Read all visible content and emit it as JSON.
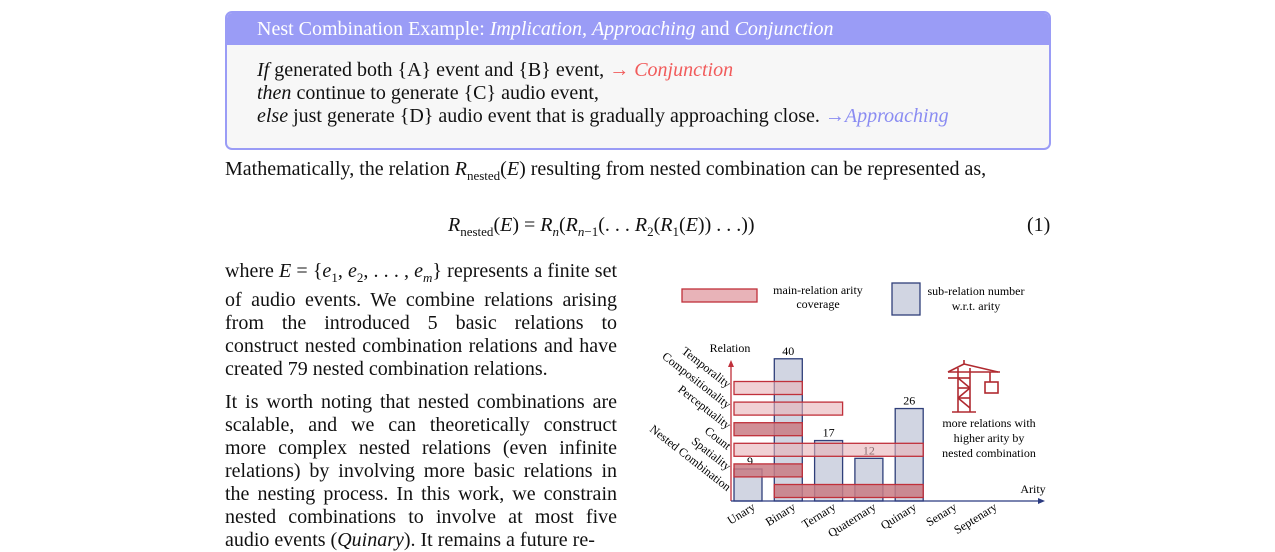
{
  "box": {
    "title_prefix": "Nest Combination Example: ",
    "title_implication": "Implication",
    "title_sep": ", ",
    "title_approaching": "Approaching",
    "title_and": " and ",
    "title_conjunction": "Conjunction",
    "line1_if": "If",
    "line1_text": " generated both {A} event and {B} event, ",
    "line1_tag": "→ Conjunction",
    "line2_then": "then",
    "line2_text": " continue to generate {C} audio event,",
    "line3_else": "else",
    "line3_text": " just generate {D} audio event that is gradually approaching close. ",
    "line3_tag": "→Approaching"
  },
  "intro": {
    "before": "Mathematically, the relation ",
    "after": " resulting from nested combination can be represented as,"
  },
  "equation": {
    "number": "(1)"
  },
  "left_column": {
    "p1_where": "where ",
    "p1_rest": " represents a finite set of audio events. We combine relations arising from the introduced 5 basic relations to construct nested combination relations and have created 79 nested combination relations.",
    "p2_a": "It is worth noting that nested combinations are scalable, and we can theoretically construct more complex nested relations (even infinite relations) by involving more basic relations in the nesting process. In this work, we constrain nested combinations to involve at most five audio events (",
    "p2_quinary": "Quinary",
    "p2_b": "). It remains a future re-"
  },
  "figure": {
    "legend_main": [
      "main-relation arity",
      "coverage"
    ],
    "legend_sub": [
      "sub-relation number",
      "w.r.t. arity"
    ],
    "y_axis_label": "Relation",
    "x_axis_label": "Arity",
    "note": [
      "more relations with",
      "higher arity by",
      "nested combination"
    ],
    "colors": {
      "bar_fill": "#d1d5e2",
      "bar_stroke": "#2f3f7a",
      "range_fill": "#e8b3b8",
      "range_stroke": "#c0303a",
      "axis": "#2a3a80",
      "accent_red": "#c0303a"
    }
  },
  "chart_data": {
    "type": "bar",
    "categories": [
      "Unary",
      "Binary",
      "Ternary",
      "Quaternary",
      "Quinary",
      "Senary",
      "Septenary"
    ],
    "values": [
      9,
      40,
      17,
      12,
      26,
      null,
      null
    ],
    "relations": [
      "Temporality",
      "Compositionality",
      "Perceptuality",
      "Count",
      "Spatiality",
      "Nested Combination"
    ],
    "coverage": [
      {
        "relation": "Temporality",
        "from": "Unary",
        "to": "Binary",
        "style": "light"
      },
      {
        "relation": "Compositionality",
        "from": "Unary",
        "to": "Ternary",
        "style": "light"
      },
      {
        "relation": "Perceptuality",
        "from": "Unary",
        "to": "Binary",
        "style": "dark"
      },
      {
        "relation": "Count",
        "from": "Unary",
        "to": "Quinary",
        "style": "light"
      },
      {
        "relation": "Spatiality",
        "from": "Unary",
        "to": "Binary",
        "style": "dark"
      },
      {
        "relation": "Nested Combination",
        "from": "Binary",
        "to": "Quinary",
        "style": "dark"
      }
    ],
    "xlabel": "Arity",
    "ylabel": "Relation",
    "ylim": [
      0,
      45
    ]
  }
}
